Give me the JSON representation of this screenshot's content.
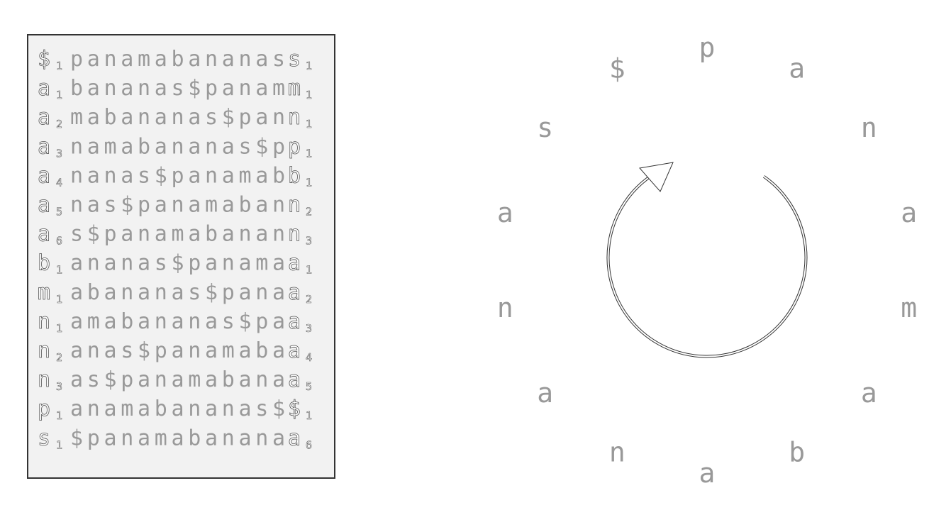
{
  "bwt_matrix": {
    "rows": [
      {
        "first": "$",
        "first_rank": "1",
        "middle": "panamabananas",
        "last": "s",
        "last_rank": "1"
      },
      {
        "first": "a",
        "first_rank": "1",
        "middle": "bananas$panam",
        "last": "m",
        "last_rank": "1"
      },
      {
        "first": "a",
        "first_rank": "2",
        "middle": "mabananas$pan",
        "last": "n",
        "last_rank": "1"
      },
      {
        "first": "a",
        "first_rank": "3",
        "middle": "namabananas$p",
        "last": "p",
        "last_rank": "1"
      },
      {
        "first": "a",
        "first_rank": "4",
        "middle": "nanas$panamab",
        "last": "b",
        "last_rank": "1"
      },
      {
        "first": "a",
        "first_rank": "5",
        "middle": "nas$panamaban",
        "last": "n",
        "last_rank": "2"
      },
      {
        "first": "a",
        "first_rank": "6",
        "middle": "s$panamabanan",
        "last": "n",
        "last_rank": "3"
      },
      {
        "first": "b",
        "first_rank": "1",
        "middle": "ananas$panama",
        "last": "a",
        "last_rank": "1"
      },
      {
        "first": "m",
        "first_rank": "1",
        "middle": "abananas$pana",
        "last": "a",
        "last_rank": "2"
      },
      {
        "first": "n",
        "first_rank": "1",
        "middle": "amabananas$pa",
        "last": "a",
        "last_rank": "3"
      },
      {
        "first": "n",
        "first_rank": "2",
        "middle": "anas$panamaba",
        "last": "a",
        "last_rank": "4"
      },
      {
        "first": "n",
        "first_rank": "3",
        "middle": "as$panamabana",
        "last": "a",
        "last_rank": "5"
      },
      {
        "first": "p",
        "first_rank": "1",
        "middle": "anamabananas$",
        "last": "$",
        "last_rank": "1"
      },
      {
        "first": "s",
        "first_rank": "1",
        "middle": "$panamabanana",
        "last": "a",
        "last_rank": "6"
      }
    ]
  },
  "cycle": {
    "letters": [
      "p",
      "a",
      "n",
      "a",
      "m",
      "a",
      "b",
      "a",
      "n",
      "a",
      "n",
      "a",
      "s",
      "$"
    ]
  },
  "colors": {
    "text": "#999999",
    "panel_bg": "#f2f2f2",
    "panel_border": "#333333",
    "arrow": "#333333"
  }
}
